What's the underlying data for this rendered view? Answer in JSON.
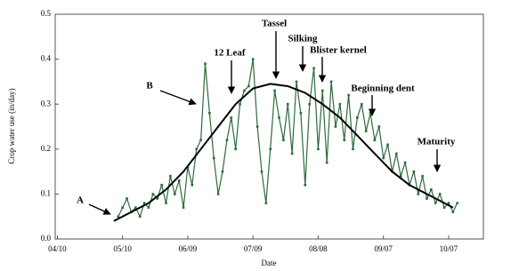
{
  "chart_data": {
    "type": "line",
    "xlabel": "Date",
    "ylabel": "Crop water use (in/day)",
    "xlim": [
      99,
      296
    ],
    "ylim": [
      0,
      0.5
    ],
    "xticks": [
      {
        "value": 100,
        "label": "04/10"
      },
      {
        "value": 130,
        "label": "05/10"
      },
      {
        "value": 160,
        "label": "06/09"
      },
      {
        "value": 190,
        "label": "07/09"
      },
      {
        "value": 220,
        "label": "08/08"
      },
      {
        "value": 250,
        "label": "09/07"
      },
      {
        "value": 280,
        "label": "10/07"
      }
    ],
    "yticks": [
      {
        "value": 0,
        "label": "0.0"
      },
      0.1,
      0.2,
      0.3,
      0.4,
      0.5
    ],
    "series": [
      {
        "color": "#2e6b3a",
        "markers": true,
        "x": [
          128,
          130,
          132,
          134,
          136,
          138,
          140,
          142,
          144,
          146,
          148,
          150,
          152,
          154,
          156,
          158,
          160,
          162,
          164,
          166,
          168,
          170,
          172,
          174,
          176,
          178,
          180,
          182,
          184,
          186,
          188,
          190,
          192,
          194,
          196,
          198,
          200,
          202,
          204,
          206,
          208,
          210,
          212,
          214,
          216,
          218,
          220,
          222,
          224,
          226,
          228,
          230,
          232,
          234,
          236,
          238,
          240,
          242,
          244,
          246,
          248,
          250,
          252,
          254,
          256,
          258,
          260,
          262,
          264,
          266,
          268,
          270,
          272,
          274,
          276,
          278,
          280,
          282,
          284
        ],
        "values": [
          0.05,
          0.07,
          0.09,
          0.06,
          0.07,
          0.05,
          0.08,
          0.07,
          0.1,
          0.09,
          0.12,
          0.08,
          0.14,
          0.1,
          0.13,
          0.07,
          0.16,
          0.12,
          0.2,
          0.22,
          0.39,
          0.28,
          0.18,
          0.1,
          0.15,
          0.22,
          0.27,
          0.2,
          0.3,
          0.33,
          0.34,
          0.4,
          0.25,
          0.15,
          0.08,
          0.2,
          0.33,
          0.27,
          0.22,
          0.3,
          0.19,
          0.35,
          0.28,
          0.12,
          0.3,
          0.38,
          0.2,
          0.33,
          0.17,
          0.35,
          0.25,
          0.3,
          0.22,
          0.32,
          0.2,
          0.27,
          0.3,
          0.24,
          0.28,
          0.22,
          0.25,
          0.18,
          0.21,
          0.15,
          0.19,
          0.14,
          0.17,
          0.12,
          0.15,
          0.1,
          0.14,
          0.09,
          0.11,
          0.08,
          0.1,
          0.07,
          0.08,
          0.06,
          0.08
        ]
      },
      {
        "color": "#000000",
        "markers": false,
        "x": [
          126,
          134,
          142,
          150,
          158,
          166,
          174,
          182,
          190,
          198,
          206,
          214,
          222,
          230,
          238,
          246,
          254,
          262,
          270,
          278,
          282
        ],
        "values": [
          0.04,
          0.06,
          0.08,
          0.11,
          0.15,
          0.2,
          0.25,
          0.3,
          0.335,
          0.345,
          0.34,
          0.325,
          0.3,
          0.27,
          0.23,
          0.19,
          0.15,
          0.12,
          0.1,
          0.08,
          0.07
        ]
      }
    ],
    "annotations": [
      "A",
      "B",
      "12 Leaf",
      "Tassel",
      "Silking",
      "Blister kernel",
      "Beginning dent",
      "Maturity"
    ]
  }
}
